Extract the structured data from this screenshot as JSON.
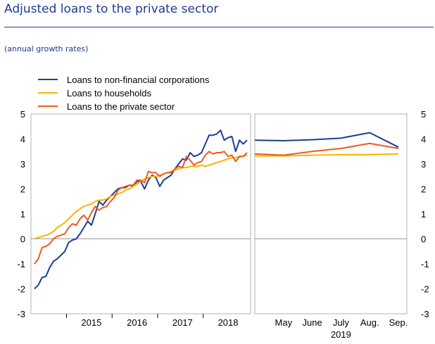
{
  "title": "Adjusted loans to the private sector",
  "subtitle": "(annual growth rates)",
  "colors": {
    "nfc": "#1b3f95",
    "households": "#f7b500",
    "private": "#ef5a1c",
    "title": "#1f3a93"
  },
  "chart_data": [
    {
      "type": "line",
      "panel": "left",
      "x_axis_type": "monthly",
      "x_start": "2014-04",
      "x_end": "2019-02",
      "xticks": [
        "2015",
        "2016",
        "2017",
        "2018"
      ],
      "yticks": [
        "5",
        "4",
        "3",
        "2",
        "1",
        "0",
        "-1",
        "-2",
        "-3"
      ],
      "ylim": [
        -3,
        5
      ],
      "grid": false,
      "legend": "top-left",
      "series": [
        {
          "name": "Loans to non-financial corporations",
          "color": "#1b3f95",
          "values": [
            -2.0,
            -1.85,
            -1.55,
            -1.5,
            -1.15,
            -0.9,
            -0.8,
            -0.65,
            -0.5,
            -0.15,
            -0.05,
            0.0,
            0.2,
            0.45,
            0.7,
            0.55,
            1.0,
            1.5,
            1.35,
            1.55,
            1.7,
            1.85,
            2.0,
            2.05,
            2.05,
            2.15,
            2.1,
            2.3,
            2.3,
            2.0,
            2.35,
            2.55,
            2.45,
            2.1,
            2.35,
            2.45,
            2.55,
            2.8,
            3.0,
            3.2,
            3.15,
            3.45,
            3.3,
            3.35,
            3.45,
            3.8,
            4.15,
            4.15,
            4.2,
            4.35,
            3.95,
            4.05,
            4.1,
            3.5,
            3.95,
            3.8,
            3.95
          ]
        },
        {
          "name": "Loans to households",
          "color": "#f7b500",
          "values": [
            0.0,
            0.05,
            0.1,
            0.15,
            0.2,
            0.3,
            0.45,
            0.55,
            0.65,
            0.8,
            0.95,
            1.1,
            1.2,
            1.3,
            1.35,
            1.4,
            1.5,
            1.55,
            1.55,
            1.6,
            1.7,
            1.75,
            1.8,
            1.85,
            1.95,
            2.0,
            2.1,
            2.2,
            2.3,
            2.4,
            2.45,
            2.5,
            2.5,
            2.55,
            2.6,
            2.65,
            2.7,
            2.75,
            2.8,
            2.85,
            2.85,
            2.9,
            2.9,
            2.9,
            2.95,
            2.9,
            2.95,
            3.0,
            3.05,
            3.1,
            3.15,
            3.2,
            3.25,
            3.25,
            3.3,
            3.3,
            3.35
          ]
        },
        {
          "name": "Loans to the private sector",
          "color": "#ef5a1c",
          "values": [
            -1.0,
            -0.8,
            -0.35,
            -0.3,
            -0.2,
            0.0,
            0.1,
            0.15,
            0.2,
            0.45,
            0.6,
            0.55,
            0.8,
            0.95,
            0.75,
            1.05,
            1.3,
            1.15,
            1.25,
            1.3,
            1.5,
            1.65,
            1.95,
            2.05,
            2.1,
            2.15,
            2.15,
            2.35,
            2.35,
            2.25,
            2.7,
            2.65,
            2.65,
            2.5,
            2.6,
            2.65,
            2.65,
            2.8,
            2.9,
            2.85,
            3.3,
            3.15,
            2.95,
            3.05,
            3.1,
            3.35,
            3.5,
            3.4,
            3.45,
            3.45,
            3.5,
            3.3,
            3.35,
            3.1,
            3.3,
            3.3,
            3.45
          ]
        }
      ]
    },
    {
      "type": "line",
      "panel": "right",
      "categories": [
        "May",
        "June",
        "July",
        "Aug.",
        "Sep."
      ],
      "x": [
        "2019-04",
        "2019-05",
        "2019-06",
        "2019-07",
        "2019-08",
        "2019-09"
      ],
      "year_label": "2019",
      "yticks": [
        "5",
        "4",
        "3",
        "2",
        "1",
        "0",
        "-1",
        "-2",
        "-3"
      ],
      "ylim": [
        -3,
        5
      ],
      "grid": false,
      "series": [
        {
          "name": "Loans to non-financial corporations",
          "color": "#1b3f95",
          "values": [
            3.95,
            3.93,
            3.97,
            4.03,
            4.25,
            3.67
          ]
        },
        {
          "name": "Loans to households",
          "color": "#f7b500",
          "values": [
            3.32,
            3.32,
            3.35,
            3.37,
            3.37,
            3.4
          ]
        },
        {
          "name": "Loans to the private sector",
          "color": "#ef5a1c",
          "values": [
            3.4,
            3.35,
            3.5,
            3.62,
            3.82,
            3.62
          ]
        }
      ]
    }
  ]
}
